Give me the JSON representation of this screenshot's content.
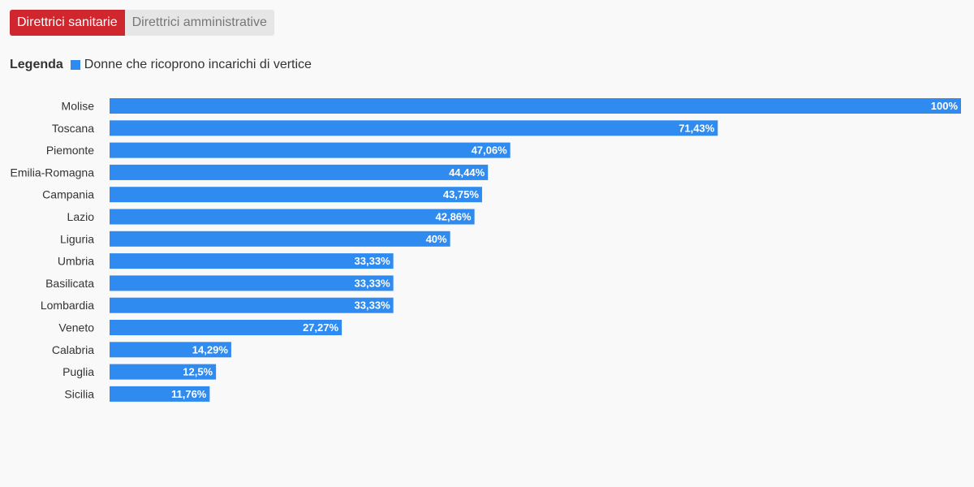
{
  "tabs": [
    {
      "label": "Direttrici sanitarie",
      "active": true
    },
    {
      "label": "Direttrici amministrative",
      "active": false
    }
  ],
  "legend": {
    "title": "Legenda",
    "item_label": "Donne che ricoprono incarichi di vertice",
    "color": "#2f8bef"
  },
  "chart_data": {
    "type": "bar",
    "orientation": "horizontal",
    "title": "",
    "xlabel": "",
    "ylabel": "",
    "xlim": [
      0,
      100
    ],
    "grid": false,
    "legend_position": "top-left",
    "categories": [
      "Molise",
      "Toscana",
      "Piemonte",
      "Emilia-Romagna",
      "Campania",
      "Lazio",
      "Liguria",
      "Umbria",
      "Basilicata",
      "Lombardia",
      "Veneto",
      "Calabria",
      "Puglia",
      "Sicilia"
    ],
    "series": [
      {
        "name": "Donne che ricoprono incarichi di vertice",
        "color": "#2f8bef",
        "values": [
          100,
          71.43,
          47.06,
          44.44,
          43.75,
          42.86,
          40,
          33.33,
          33.33,
          33.33,
          27.27,
          14.29,
          12.5,
          11.76
        ],
        "value_labels": [
          "100%",
          "71,43%",
          "47,06%",
          "44,44%",
          "43,75%",
          "42,86%",
          "40%",
          "33,33%",
          "33,33%",
          "33,33%",
          "27,27%",
          "14,29%",
          "12,5%",
          "11,76%"
        ]
      }
    ]
  }
}
